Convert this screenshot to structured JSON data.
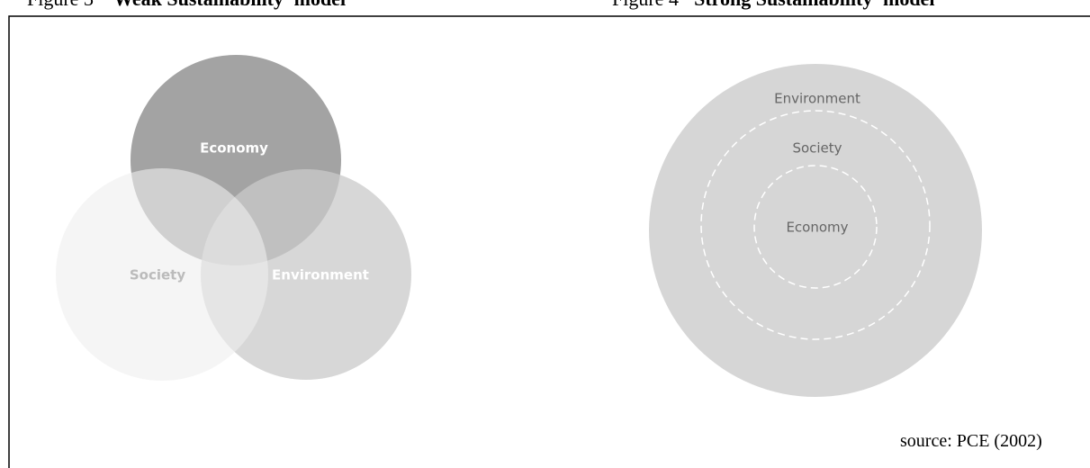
{
  "figures": [
    {
      "number": "Figure 3",
      "title": "'Weak Sustainability' model",
      "labels": {
        "economy": "Economy",
        "society": "Society",
        "environment": "Environment"
      }
    },
    {
      "number": "Figure 4",
      "title": "'Strong Sustainability' model",
      "labels": {
        "environment": "Environment",
        "society": "Society",
        "economy": "Economy"
      }
    }
  ],
  "source": "source:  PCE (2002)"
}
